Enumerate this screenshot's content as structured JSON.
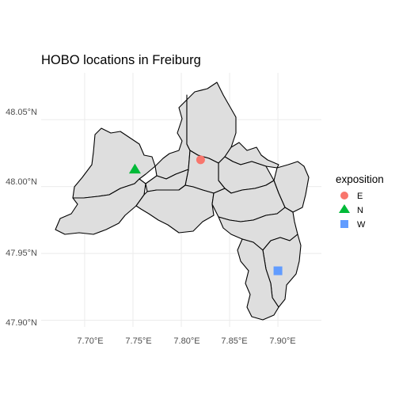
{
  "title": "HOBO locations in Freiburg",
  "x_axis": {
    "ticks": [
      "7.70°E",
      "7.75°E",
      "7.80°E",
      "7.85°E",
      "7.90°E"
    ]
  },
  "y_axis": {
    "ticks": [
      "48.05°N",
      "48.00°N",
      "47.95°N",
      "47.90°N"
    ]
  },
  "legend": {
    "title": "exposition",
    "placement": "right",
    "items": [
      {
        "label": "E",
        "shape": "circle",
        "color": "#F8766D"
      },
      {
        "label": "N",
        "shape": "triangle",
        "color": "#00BA38"
      },
      {
        "label": "W",
        "shape": "square",
        "color": "#619CFF"
      }
    ]
  },
  "colors": {
    "background": "#ffffff",
    "grid": "#ebebeb",
    "district_fill": "#dedede",
    "district_border": "#000000"
  },
  "points": [
    {
      "exposition": "E",
      "lon": 7.82,
      "lat": 48.02
    },
    {
      "exposition": "N",
      "lon": 7.752,
      "lat": 48.013
    },
    {
      "exposition": "W",
      "lon": 7.9,
      "lat": 47.937
    }
  ],
  "chart_data": {
    "type": "scatter",
    "title": "HOBO locations in Freiburg",
    "xlabel": "",
    "ylabel": "",
    "xlim": [
      7.655,
      7.945
    ],
    "ylim": [
      47.895,
      48.085
    ],
    "x_ticks": [
      7.7,
      7.75,
      7.8,
      7.85,
      7.9
    ],
    "y_ticks": [
      48.05,
      48.0,
      47.95,
      47.9
    ],
    "grid": true,
    "series": [
      {
        "name": "E",
        "x": [
          7.82
        ],
        "y": [
          48.02
        ]
      },
      {
        "name": "N",
        "x": [
          7.752
        ],
        "y": [
          48.013
        ]
      },
      {
        "name": "W",
        "x": [
          7.9
        ],
        "y": [
          47.937
        ]
      }
    ]
  }
}
